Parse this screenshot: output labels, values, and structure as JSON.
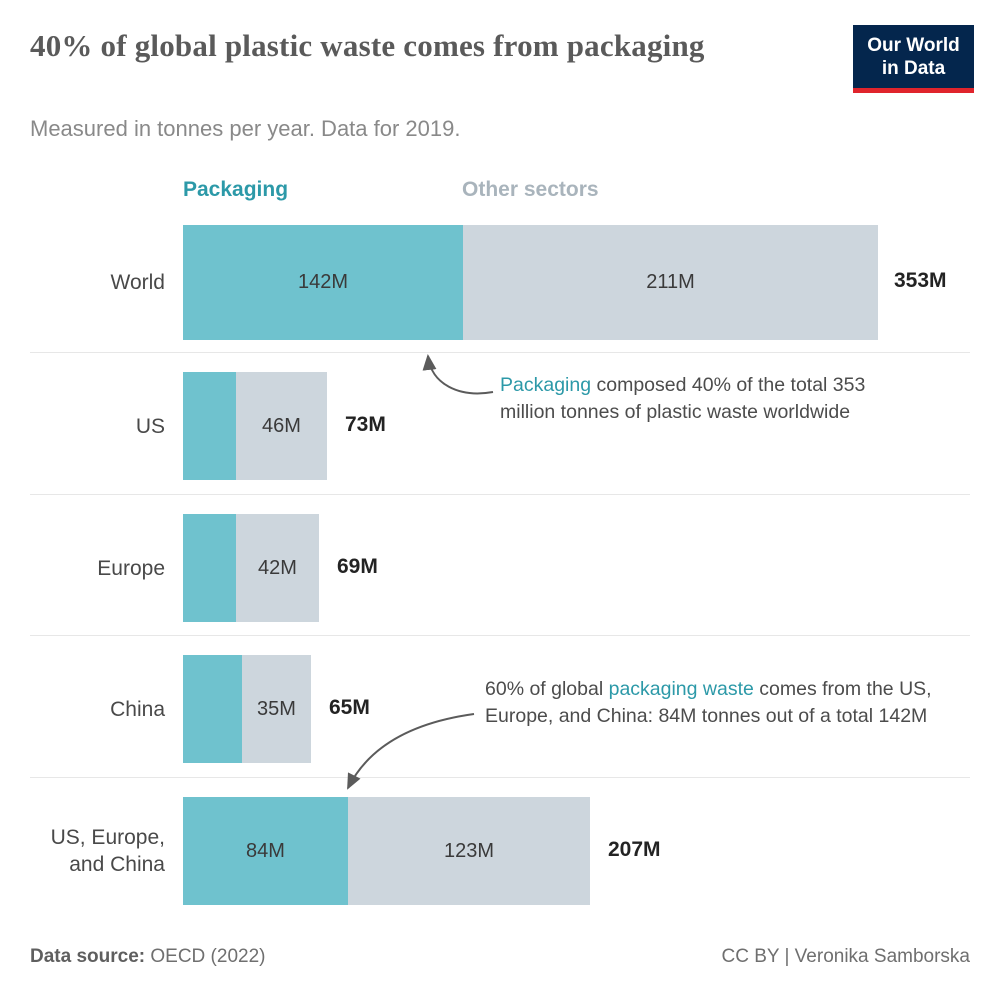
{
  "header": {
    "title": "40% of global plastic waste comes from packaging",
    "subtitle": "Measured in tonnes per year. Data for 2019.",
    "logo_line1": "Our World",
    "logo_line2": "in Data"
  },
  "legend": {
    "packaging": "Packaging",
    "other": "Other sectors"
  },
  "colors": {
    "packaging_bar": "#6fc2ce",
    "other_bar": "#cdd6dd",
    "accent_text": "#2c99a8",
    "logo_bg": "#04264d",
    "logo_red": "#e0242c"
  },
  "chart_data": {
    "type": "bar",
    "orientation": "horizontal",
    "stacked": true,
    "title": "40% of global plastic waste comes from packaging",
    "subtitle": "Measured in tonnes per year. Data for 2019.",
    "unit": "million tonnes per year",
    "categories": [
      "World",
      "US",
      "Europe",
      "China",
      "US, Europe, and China"
    ],
    "series": [
      {
        "name": "Packaging",
        "values": [
          142,
          27,
          27,
          30,
          84
        ]
      },
      {
        "name": "Other sectors",
        "values": [
          211,
          46,
          42,
          35,
          123
        ]
      }
    ],
    "totals": [
      353,
      73,
      69,
      65,
      207
    ],
    "segment_labels": [
      [
        "142M",
        "211M"
      ],
      [
        null,
        "46M"
      ],
      [
        null,
        "42M"
      ],
      [
        null,
        "35M"
      ],
      [
        "84M",
        "123M"
      ]
    ],
    "total_labels": [
      "353M",
      "73M",
      "69M",
      "65M",
      "207M"
    ],
    "xmax": 353,
    "legend_position": "top",
    "grid": false
  },
  "annotations": [
    {
      "pre": "",
      "highlight": "Packaging",
      "post": " composed 40% of the total 353 million tonnes of plastic waste worldwide"
    },
    {
      "pre": "60% of global ",
      "highlight": "packaging waste",
      "post": " comes from the US, Europe, and China: 84M tonnes out of a total 142M"
    }
  ],
  "footer": {
    "source_label": "Data source:",
    "source_value": " OECD (2022)",
    "credit": "CC BY | Veronika Samborska"
  }
}
